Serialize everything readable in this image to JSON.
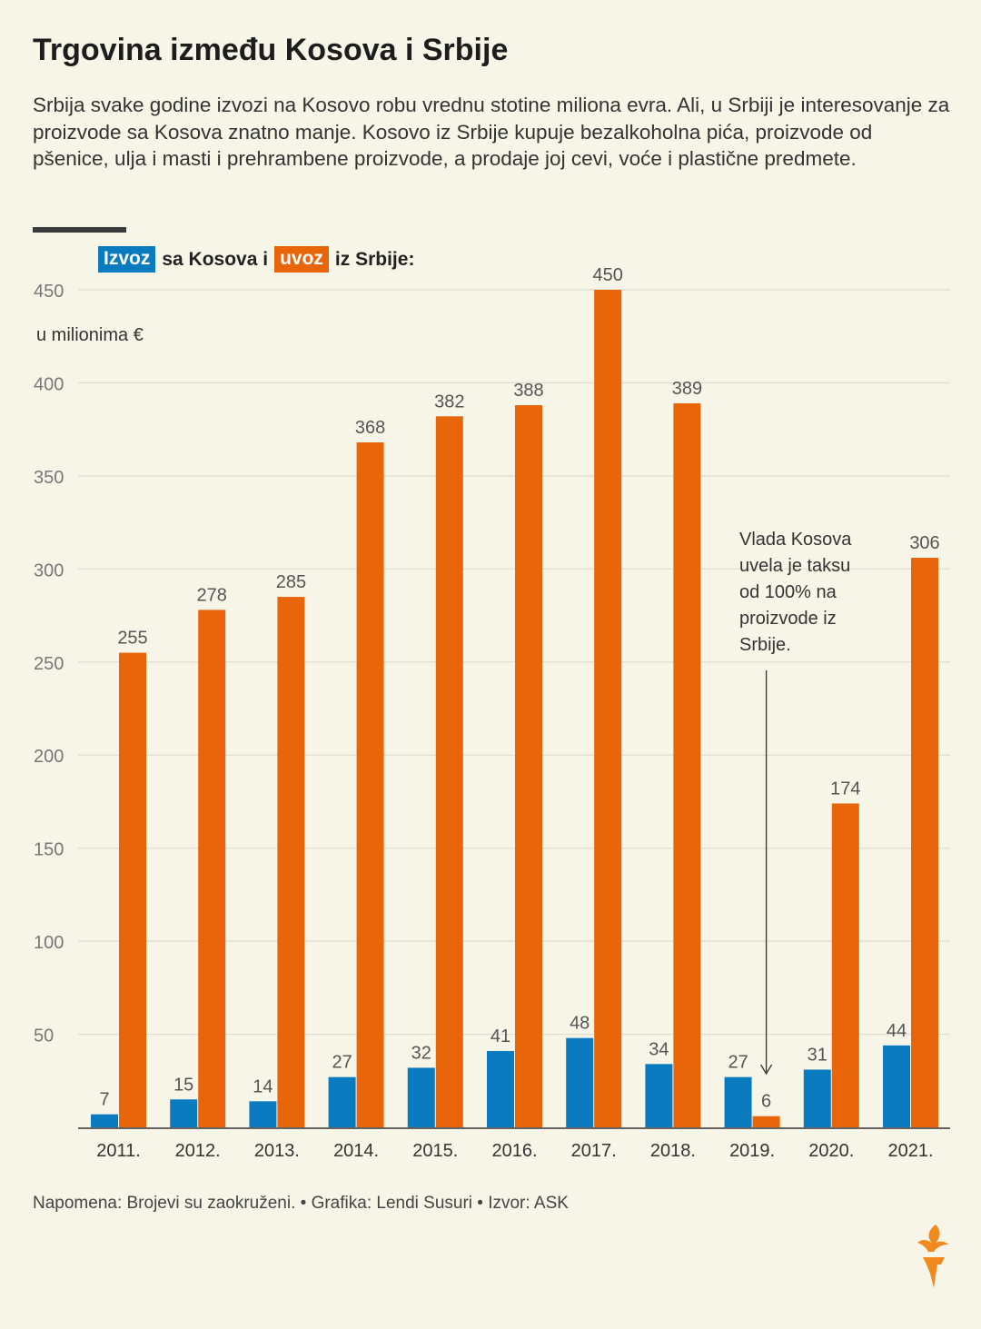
{
  "title": "Trgovina između Kosova i Srbije",
  "subtitle": "Srbija svake godine izvozi na Kosovo robu vrednu stotine miliona evra. Ali, u Srbiji je interesovanje za proizvode sa Kosova znatno manje. Kosovo iz Srbije kupuje bezalkoholna pića, proizvode od pšenice, ulja i masti i prehrambene proizvode, a prodaje joj cevi, voće i plastične predmete.",
  "legend": {
    "series1_label": "Izvoz",
    "text1": "sa Kosova i",
    "series2_label": "uvoz",
    "text2": "iz Srbije:"
  },
  "unit_label": "u milionima €",
  "annotation": {
    "lines": [
      "Vlada Kosova",
      "uvela je taksu",
      "od 100% na",
      "proizvode iz",
      "Srbije."
    ],
    "year": "2019.",
    "series": "uvoz"
  },
  "footnote": "Napomena: Brojevi su zaokruženi. • Grafika: Lendi Susuri • Izvor: ASK",
  "colors": {
    "izvoz": "#0b7bbf",
    "uvoz": "#e8650a",
    "background": "#f7f5e8",
    "grid": "#dcdcd0",
    "axis_text": "#777777",
    "value_text": "#555555"
  },
  "logo": {
    "icon": "torch-icon",
    "color": "#f08a1e"
  },
  "chart_data": {
    "type": "bar",
    "categories": [
      "2011.",
      "2012.",
      "2013.",
      "2014.",
      "2015.",
      "2016.",
      "2017.",
      "2018.",
      "2019.",
      "2020.",
      "2021."
    ],
    "series": [
      {
        "name": "Izvoz",
        "values": [
          7,
          15,
          14,
          27,
          32,
          41,
          48,
          34,
          27,
          31,
          44
        ]
      },
      {
        "name": "uvoz",
        "values": [
          255,
          278,
          285,
          368,
          382,
          388,
          450,
          389,
          6,
          174,
          306
        ]
      }
    ],
    "yticks": [
      50,
      100,
      150,
      200,
      250,
      300,
      350,
      400,
      450
    ],
    "ylim": [
      0,
      450
    ],
    "grid": true,
    "data_labels": true,
    "legend_position": "top-left"
  }
}
